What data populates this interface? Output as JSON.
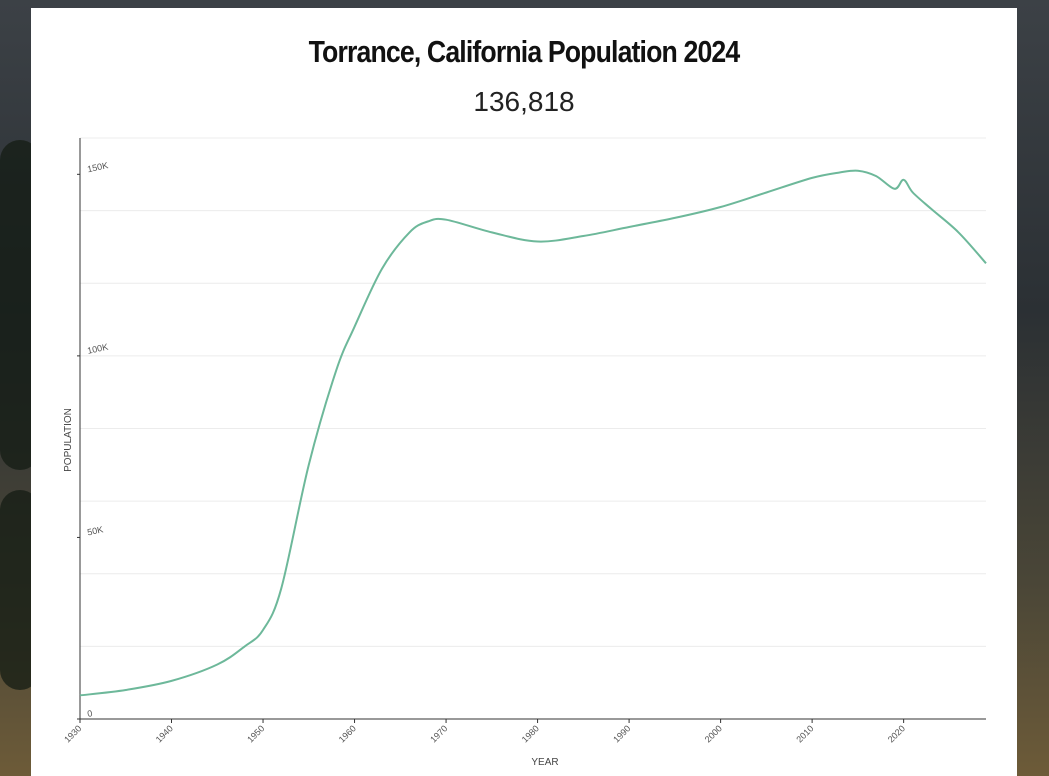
{
  "header": {
    "title": "Torrance, California Population 2024",
    "value": "136,818"
  },
  "chart_data": {
    "type": "line",
    "title": "Torrance, California Population 2024",
    "subtitle": "136,818",
    "xlabel": "YEAR",
    "ylabel": "POPULATION",
    "xlim": [
      1930,
      2029
    ],
    "ylim": [
      0,
      160000
    ],
    "x_ticks": [
      1930,
      1940,
      1950,
      1960,
      1970,
      1980,
      1990,
      2000,
      2010,
      2020
    ],
    "x_tick_labels": [
      "1930",
      "1940",
      "1950",
      "1960",
      "1970",
      "1980",
      "1990",
      "2000",
      "2010",
      "2020"
    ],
    "y_ticks": [
      0,
      50000,
      100000,
      150000
    ],
    "y_tick_labels": [
      "0",
      "50K",
      "100K",
      "150K"
    ],
    "grid": true,
    "line_color": "#6db89a",
    "series": [
      {
        "x": [
          1930,
          1935,
          1940,
          1945,
          1948,
          1950,
          1952,
          1955,
          1958,
          1960,
          1963,
          1966,
          1968,
          1970,
          1975,
          1980,
          1985,
          1990,
          1995,
          2000,
          2005,
          2010,
          2013,
          2015,
          2017,
          2019,
          2020,
          2021,
          2023,
          2026,
          2029
        ],
        "y": [
          6500,
          8000,
          10500,
          15000,
          20000,
          24500,
          36000,
          70000,
          96000,
          108000,
          124000,
          134000,
          137000,
          137500,
          134000,
          131500,
          133000,
          135500,
          138000,
          141000,
          145000,
          149000,
          150500,
          151000,
          149500,
          146000,
          148500,
          145000,
          140500,
          134000,
          125500
        ]
      }
    ]
  }
}
